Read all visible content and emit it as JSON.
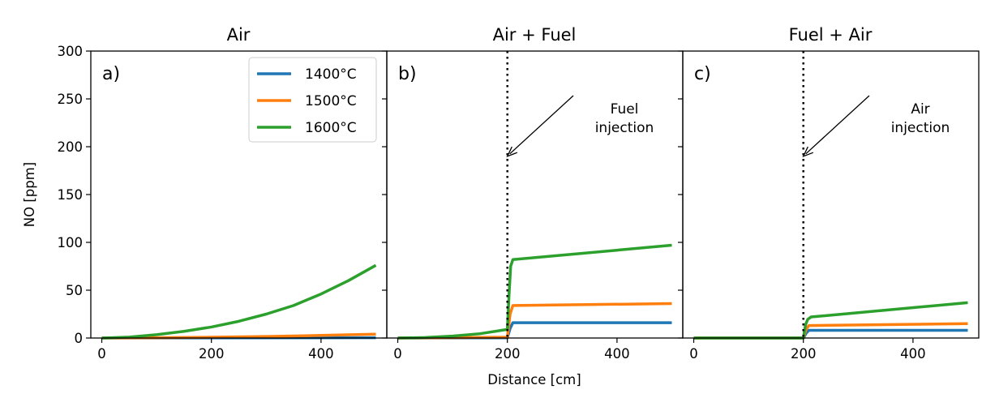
{
  "chart_data": {
    "type": "line",
    "xlabel": "Distance [cm]",
    "ylabel": "NO [ppm]",
    "xlim": [
      -20,
      520
    ],
    "ylim": [
      0,
      300
    ],
    "xticks": [
      0,
      200,
      400
    ],
    "yticks": [
      0,
      50,
      100,
      150,
      200,
      250,
      300
    ],
    "grid": false,
    "legend": {
      "placement": "top-right of panel a",
      "entries": [
        "1400°C",
        "1500°C",
        "1600°C"
      ]
    },
    "colors": {
      "1400°C": "#1f77b4",
      "1500°C": "#ff7f0e",
      "1600°C": "#2ca02c"
    },
    "panels": [
      {
        "title": "Air",
        "letter": "a)",
        "series": [
          {
            "name": "1400°C",
            "x": [
              0,
              500
            ],
            "y": [
              0,
              0.3
            ]
          },
          {
            "name": "1500°C",
            "x": [
              0,
              100,
              200,
              300,
              400,
              500
            ],
            "y": [
              0,
              0.3,
              0.8,
              1.6,
              2.7,
              4
            ]
          },
          {
            "name": "1600°C",
            "x": [
              0,
              50,
              100,
              150,
              200,
              250,
              300,
              350,
              400,
              450,
              500
            ],
            "y": [
              0,
              1,
              3.5,
              7,
              11.5,
              17.5,
              25,
              34,
              46,
              60,
              76
            ]
          }
        ]
      },
      {
        "title": "Air + Fuel",
        "letter": "b)",
        "injection_x": 200,
        "annotation": {
          "lines": [
            "Fuel",
            "injection"
          ],
          "x": 200,
          "y": 190
        },
        "series": [
          {
            "name": "1400°C",
            "x": [
              0,
              200,
              205,
              210,
              500
            ],
            "y": [
              0,
              0.2,
              10,
              16,
              16
            ]
          },
          {
            "name": "1500°C",
            "x": [
              0,
              200,
              205,
              210,
              500
            ],
            "y": [
              0,
              0.8,
              25,
              34,
              36
            ]
          },
          {
            "name": "1600°C",
            "x": [
              0,
              50,
              100,
              150,
              200,
              203,
              206,
              210,
              500
            ],
            "y": [
              0,
              0.5,
              2,
              4.5,
              9,
              45,
              75,
              82,
              97
            ]
          }
        ]
      },
      {
        "title": "Fuel + Air",
        "letter": "c)",
        "injection_x": 200,
        "annotation": {
          "lines": [
            "Air",
            "injection"
          ],
          "x": 200,
          "y": 190
        },
        "series": [
          {
            "name": "1400°C",
            "x": [
              0,
              200,
              205,
              210,
              500
            ],
            "y": [
              0,
              0,
              5,
              8,
              8
            ]
          },
          {
            "name": "1500°C",
            "x": [
              0,
              200,
              205,
              210,
              500
            ],
            "y": [
              0,
              0,
              9,
              13,
              15
            ]
          },
          {
            "name": "1600°C",
            "x": [
              0,
              200,
              204,
              208,
              214,
              500
            ],
            "y": [
              0,
              0,
              14,
              19.5,
              22,
              37
            ]
          }
        ]
      }
    ]
  }
}
